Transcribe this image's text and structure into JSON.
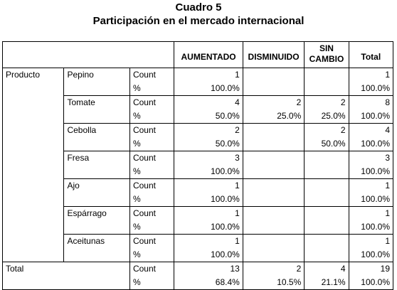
{
  "title": "Cuadro 5",
  "subtitle": "Participación en el mercado internacional",
  "columns": [
    "AUMENTADO",
    "DISMINUIDO",
    "SIN CAMBIO",
    "Total"
  ],
  "row_group_label": "Producto",
  "stat_labels": [
    "Count",
    "%"
  ],
  "rows": [
    {
      "name": "Pepino",
      "count": [
        "1",
        "",
        "",
        "1"
      ],
      "pct": [
        "100.0%",
        "",
        "",
        "100.0%"
      ]
    },
    {
      "name": "Tomate",
      "count": [
        "4",
        "2",
        "2",
        "8"
      ],
      "pct": [
        "50.0%",
        "25.0%",
        "25.0%",
        "100.0%"
      ]
    },
    {
      "name": "Cebolla",
      "count": [
        "2",
        "",
        "2",
        "4"
      ],
      "pct": [
        "50.0%",
        "",
        "50.0%",
        "100.0%"
      ]
    },
    {
      "name": "Fresa",
      "count": [
        "3",
        "",
        "",
        "3"
      ],
      "pct": [
        "100.0%",
        "",
        "",
        "100.0%"
      ]
    },
    {
      "name": "Ajo",
      "count": [
        "1",
        "",
        "",
        "1"
      ],
      "pct": [
        "100.0%",
        "",
        "",
        "100.0%"
      ]
    },
    {
      "name": "Espárrago",
      "count": [
        "1",
        "",
        "",
        "1"
      ],
      "pct": [
        "100.0%",
        "",
        "",
        "100.0%"
      ]
    },
    {
      "name": "Aceitunas",
      "count": [
        "1",
        "",
        "",
        "1"
      ],
      "pct": [
        "100.0%",
        "",
        "",
        "100.0%"
      ]
    }
  ],
  "total": {
    "label": "Total",
    "count": [
      "13",
      "2",
      "4",
      "19"
    ],
    "pct": [
      "68.4%",
      "10.5%",
      "21.1%",
      "100.0%"
    ]
  }
}
